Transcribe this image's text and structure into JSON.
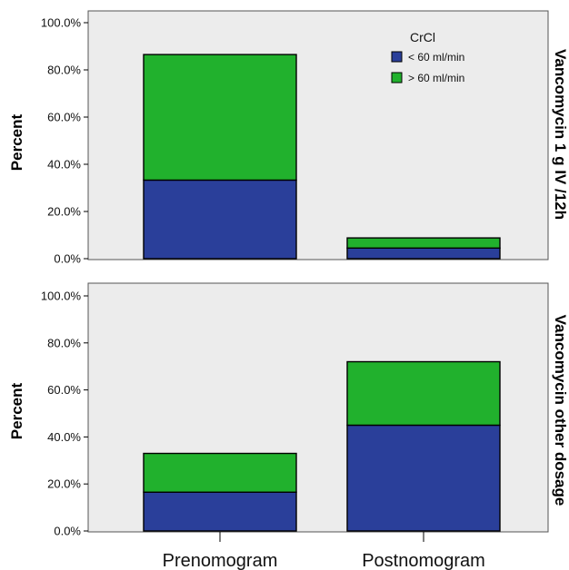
{
  "chart_data": {
    "type": "bar",
    "stacked": true,
    "categories": [
      "Prenomogram",
      "Postnomogram"
    ],
    "ylabel": "Percent",
    "ylim": [
      0,
      100
    ],
    "yticks": [
      "0.0%",
      "20.0%",
      "40.0%",
      "60.0%",
      "80.0%",
      "100.0%"
    ],
    "grid": false,
    "legend": {
      "title": "CrCl",
      "placement": "top-right",
      "entries": [
        {
          "name": "< 60 ml/min",
          "color": "#2a3f9a"
        },
        {
          "name": "> 60 ml/min",
          "color": "#21b12d"
        }
      ]
    },
    "panels": [
      {
        "label": "Vancomycin 1 g IV /12h",
        "series": [
          {
            "name": "< 60 ml/min",
            "values": [
              33.3,
              4.5
            ]
          },
          {
            "name": "> 60 ml/min",
            "values": [
              53.2,
              4.3
            ]
          }
        ]
      },
      {
        "label": "Vancomycin other dosage",
        "series": [
          {
            "name": "< 60 ml/min",
            "values": [
              16.5,
              45.0
            ]
          },
          {
            "name": "> 60 ml/min",
            "values": [
              16.5,
              27.0
            ]
          }
        ]
      }
    ]
  },
  "colors": {
    "panel_bg": "#ececec",
    "bar_low": "#2a3f9a",
    "bar_high": "#21b12d"
  }
}
